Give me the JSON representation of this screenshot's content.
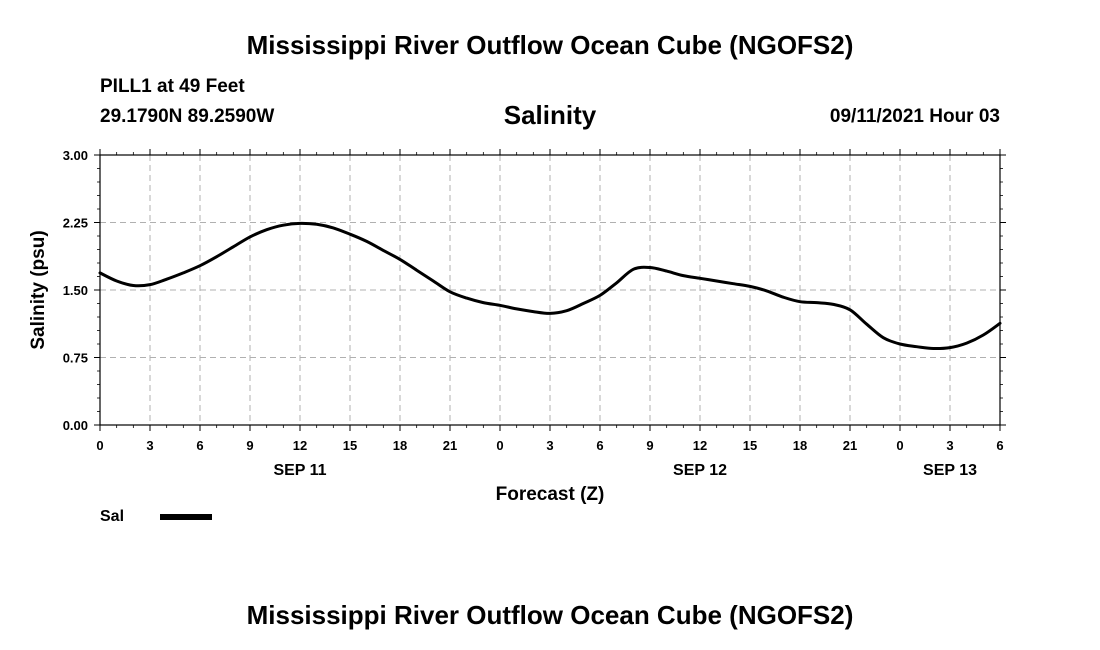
{
  "header": {
    "title": "Mississippi River Outflow Ocean Cube (NGOFS2)",
    "station": "PILL1 at 49 Feet",
    "coords": "29.1790N  89.2590W",
    "variable": "Salinity",
    "timestamp": "09/11/2021 Hour 03"
  },
  "footer": {
    "title": "Mississippi River Outflow Ocean Cube (NGOFS2)"
  },
  "chart_data": {
    "type": "line",
    "title": "Salinity",
    "xlabel": "Forecast (Z)",
    "ylabel": "Salinity (psu)",
    "ylim": [
      0,
      3
    ],
    "yticks": [
      "0.00",
      "0.75",
      "1.50",
      "2.25",
      "3.00"
    ],
    "xlim": [
      0,
      54
    ],
    "xticks": [
      "0",
      "3",
      "6",
      "9",
      "12",
      "15",
      "18",
      "21",
      "0",
      "3",
      "6",
      "9",
      "12",
      "15",
      "18",
      "21",
      "0",
      "3",
      "6"
    ],
    "date_labels": [
      {
        "hour": 12,
        "label": "SEP 11"
      },
      {
        "hour": 36,
        "label": "SEP 12"
      },
      {
        "hour": 51,
        "label": "SEP 13"
      }
    ],
    "grid": true,
    "series": [
      {
        "name": "Sal",
        "color": "#000000",
        "x": [
          0,
          1,
          2,
          3,
          4,
          5,
          6,
          7,
          8,
          9,
          10,
          11,
          12,
          13,
          14,
          15,
          16,
          17,
          18,
          19,
          20,
          21,
          22,
          23,
          24,
          25,
          26,
          27,
          28,
          29,
          30,
          31,
          32,
          33,
          34,
          35,
          36,
          37,
          38,
          39,
          40,
          41,
          42,
          43,
          44,
          45,
          46,
          47,
          48,
          49,
          50,
          51,
          52,
          53,
          54
        ],
        "values": [
          1.69,
          1.6,
          1.55,
          1.56,
          1.62,
          1.69,
          1.77,
          1.87,
          1.98,
          2.09,
          2.17,
          2.22,
          2.24,
          2.23,
          2.19,
          2.12,
          2.04,
          1.94,
          1.84,
          1.72,
          1.6,
          1.48,
          1.41,
          1.36,
          1.33,
          1.29,
          1.26,
          1.24,
          1.27,
          1.35,
          1.44,
          1.58,
          1.73,
          1.75,
          1.71,
          1.66,
          1.63,
          1.6,
          1.57,
          1.54,
          1.49,
          1.42,
          1.37,
          1.36,
          1.34,
          1.28,
          1.12,
          0.97,
          0.9,
          0.87,
          0.85,
          0.86,
          0.91,
          1.0,
          1.13
        ]
      }
    ],
    "legend": "bottom-left"
  }
}
